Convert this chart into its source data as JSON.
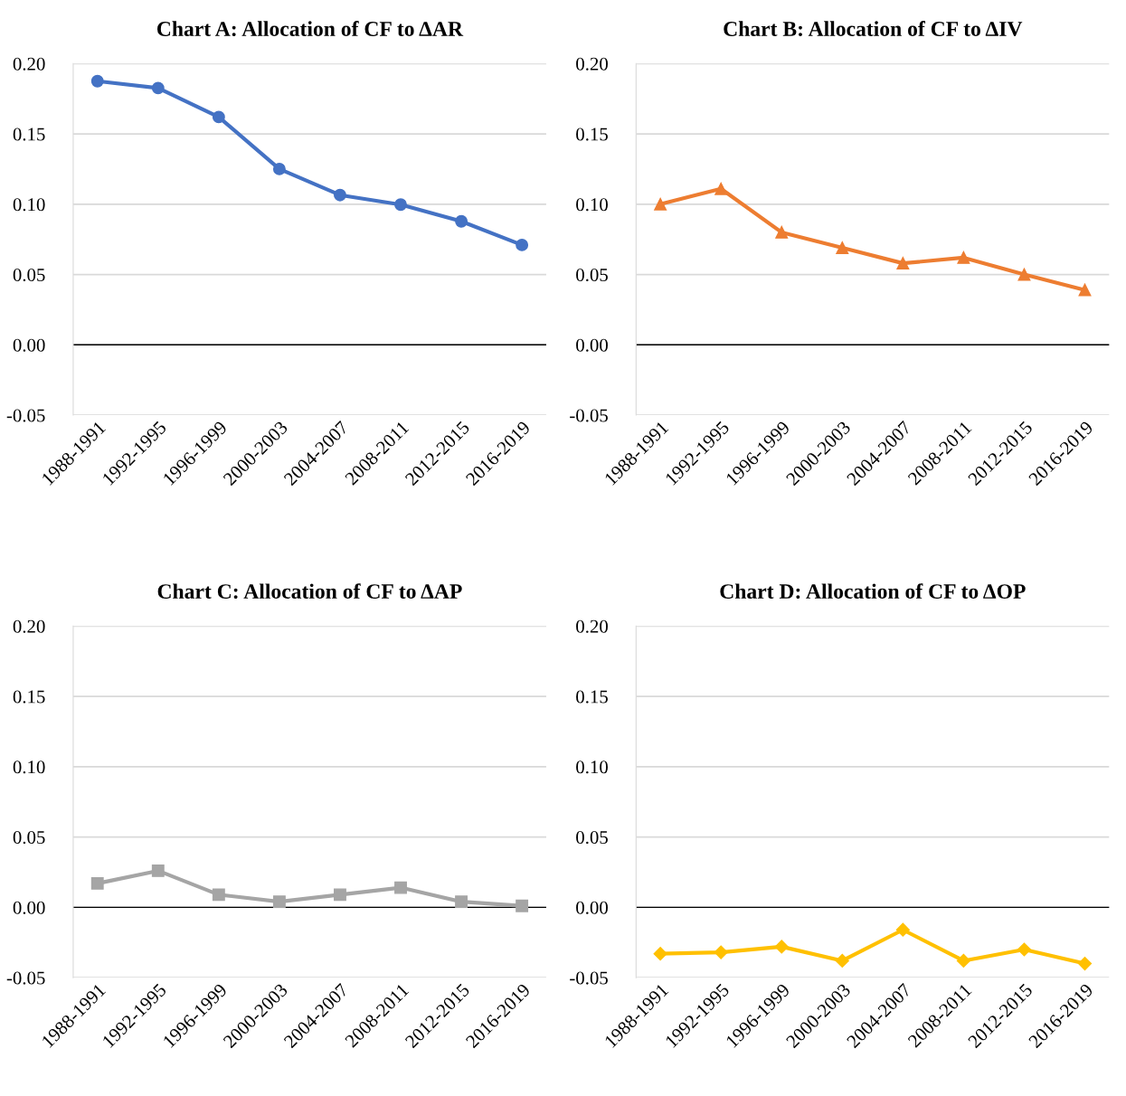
{
  "chart_data": [
    {
      "type": "line",
      "title": "Chart A: Allocation of CF to ΔAR",
      "categories": [
        "1988-1991",
        "1992-1995",
        "1996-1999",
        "2000-2003",
        "2004-2007",
        "2008-2011",
        "2012-2015",
        "2016-2019"
      ],
      "series": [
        {
          "color": "#4472c4",
          "values": [
            0.1875,
            0.1826,
            0.162,
            0.125,
            0.1065,
            0.0997,
            0.0878,
            0.071
          ]
        }
      ],
      "marker": "circle",
      "ylim": [
        -0.05,
        0.2
      ],
      "yticks": [
        {
          "value": -0.05,
          "label": "-0.05"
        },
        {
          "value": 0,
          "label": "0.00"
        },
        {
          "value": 0.05,
          "label": "0.05"
        },
        {
          "value": 0.1,
          "label": "0.10"
        },
        {
          "value": 0.15,
          "label": "0.15"
        },
        {
          "value": 0.2,
          "label": "0.20"
        }
      ],
      "grid": "y",
      "ref_lines": [
        {
          "axis": "y",
          "value": 0,
          "color": "#000000"
        }
      ]
    },
    {
      "type": "line",
      "title": "Chart B: Allocation of CF to ΔIV",
      "categories": [
        "1988-1991",
        "1992-1995",
        "1996-1999",
        "2000-2003",
        "2004-2007",
        "2008-2011",
        "2012-2015",
        "2016-2019"
      ],
      "series": [
        {
          "color": "#ed7d31",
          "values": [
            0.1,
            0.111,
            0.08,
            0.069,
            0.058,
            0.062,
            0.05,
            0.039
          ]
        }
      ],
      "marker": "triangle",
      "ylim": [
        -0.05,
        0.2
      ],
      "yticks": [
        {
          "value": -0.05,
          "label": "-0.05"
        },
        {
          "value": 0,
          "label": "0.00"
        },
        {
          "value": 0.05,
          "label": "0.05"
        },
        {
          "value": 0.1,
          "label": "0.10"
        },
        {
          "value": 0.15,
          "label": "0.15"
        },
        {
          "value": 0.2,
          "label": "0.20"
        }
      ],
      "grid": "y",
      "ref_lines": [
        {
          "axis": "y",
          "value": 0,
          "color": "#000000"
        }
      ]
    },
    {
      "type": "line",
      "title": "Chart C: Allocation of CF to ΔAP",
      "categories": [
        "1988-1991",
        "1992-1995",
        "1996-1999",
        "2000-2003",
        "2004-2007",
        "2008-2011",
        "2012-2015",
        "2016-2019"
      ],
      "series": [
        {
          "color": "#a5a5a5",
          "values": [
            0.017,
            0.026,
            0.009,
            0.004,
            0.009,
            0.014,
            0.004,
            0.001
          ]
        }
      ],
      "marker": "square",
      "ylim": [
        -0.05,
        0.2
      ],
      "yticks": [
        {
          "value": -0.05,
          "label": "-0.05"
        },
        {
          "value": 0,
          "label": "0.00"
        },
        {
          "value": 0.05,
          "label": "0.05"
        },
        {
          "value": 0.1,
          "label": "0.10"
        },
        {
          "value": 0.15,
          "label": "0.15"
        },
        {
          "value": 0.2,
          "label": "0.20"
        }
      ],
      "grid": "y",
      "ref_lines": [
        {
          "axis": "y",
          "value": 0,
          "color": "#000000"
        }
      ]
    },
    {
      "type": "line",
      "title": "Chart D: Allocation of CF to ΔOP",
      "categories": [
        "1988-1991",
        "1992-1995",
        "1996-1999",
        "2000-2003",
        "2004-2007",
        "2008-2011",
        "2012-2015",
        "2016-2019"
      ],
      "series": [
        {
          "color": "#ffc000",
          "values": [
            -0.033,
            -0.032,
            -0.028,
            -0.038,
            -0.016,
            -0.038,
            -0.03,
            -0.04
          ]
        }
      ],
      "marker": "diamond",
      "ylim": [
        -0.05,
        0.2
      ],
      "yticks": [
        {
          "value": -0.05,
          "label": "-0.05"
        },
        {
          "value": 0,
          "label": "0.00"
        },
        {
          "value": 0.05,
          "label": "0.05"
        },
        {
          "value": 0.1,
          "label": "0.10"
        },
        {
          "value": 0.15,
          "label": "0.15"
        },
        {
          "value": 0.2,
          "label": "0.20"
        }
      ],
      "grid": "y",
      "ref_lines": [
        {
          "axis": "y",
          "value": 0,
          "color": "#000000"
        }
      ]
    }
  ]
}
